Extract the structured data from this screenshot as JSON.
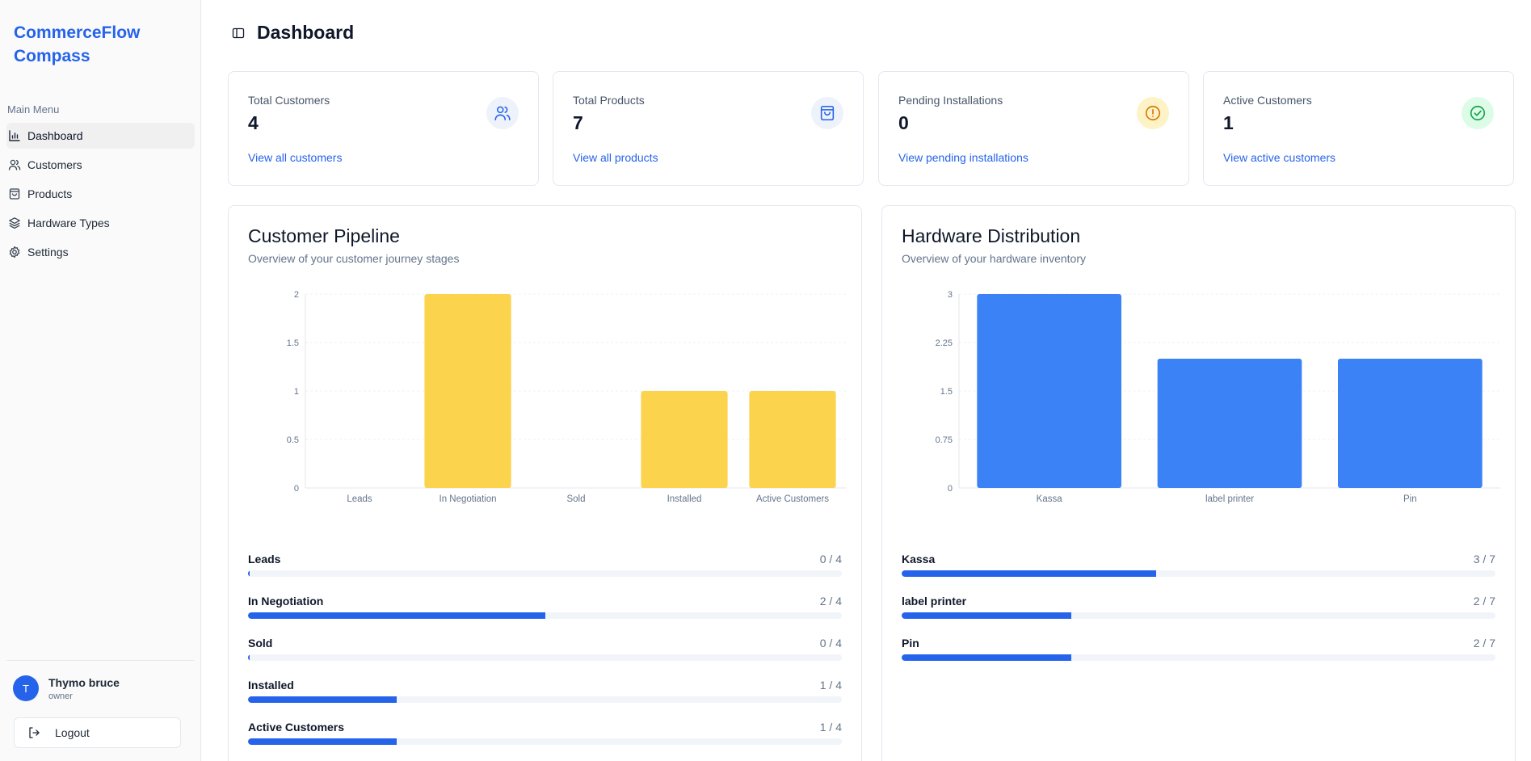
{
  "brand": {
    "title": "CommerceFlow Compass"
  },
  "sidebar": {
    "heading": "Main Menu",
    "items": [
      {
        "label": "Dashboard",
        "icon": "bar-chart-icon",
        "active": true
      },
      {
        "label": "Customers",
        "icon": "users-icon"
      },
      {
        "label": "Products",
        "icon": "shopping-bag-icon"
      },
      {
        "label": "Hardware Types",
        "icon": "layers-icon"
      },
      {
        "label": "Settings",
        "icon": "gear-icon"
      }
    ],
    "user": {
      "initial": "T",
      "name": "Thymo bruce",
      "role": "owner"
    },
    "logout_label": "Logout"
  },
  "header": {
    "title": "Dashboard"
  },
  "stats": [
    {
      "label": "Total Customers",
      "value": "4",
      "link": "View all customers",
      "icon": "users-icon",
      "accent": "#2563eb",
      "icon_bg": "#eef2fb"
    },
    {
      "label": "Total Products",
      "value": "7",
      "link": "View all products",
      "icon": "shopping-bag-icon",
      "accent": "#2563eb",
      "icon_bg": "#eef2fb"
    },
    {
      "label": "Pending Installations",
      "value": "0",
      "link": "View pending installations",
      "icon": "alert-circle-icon",
      "accent": "#d97706",
      "icon_bg": "#fef3c7"
    },
    {
      "label": "Active Customers",
      "value": "1",
      "link": "View active customers",
      "icon": "check-circle-icon",
      "accent": "#16a34a",
      "icon_bg": "#dcfce7"
    }
  ],
  "pipeline": {
    "title": "Customer Pipeline",
    "subtitle": "Overview of your customer journey stages",
    "rows": [
      {
        "label": "Leads",
        "count": "0 / 4",
        "fraction": 0.0
      },
      {
        "label": "In Negotiation",
        "count": "2 / 4",
        "fraction": 0.5
      },
      {
        "label": "Sold",
        "count": "0 / 4",
        "fraction": 0.0
      },
      {
        "label": "Installed",
        "count": "1 / 4",
        "fraction": 0.25
      },
      {
        "label": "Active Customers",
        "count": "1 / 4",
        "fraction": 0.25
      }
    ]
  },
  "hardware": {
    "title": "Hardware Distribution",
    "subtitle": "Overview of your hardware inventory",
    "rows": [
      {
        "label": "Kassa",
        "count": "3 / 7",
        "fraction": 0.4286
      },
      {
        "label": "label printer",
        "count": "2 / 7",
        "fraction": 0.2857
      },
      {
        "label": "Pin",
        "count": "2 / 7",
        "fraction": 0.2857
      }
    ]
  },
  "chart_data": [
    {
      "type": "bar",
      "categories": [
        "Leads",
        "In Negotiation",
        "Sold",
        "Installed",
        "Active Customers"
      ],
      "values": [
        0,
        2,
        0,
        1,
        1
      ],
      "ylim": [
        0,
        2
      ],
      "yticks": [
        "0",
        "0.5",
        "1",
        "1.5",
        "2"
      ],
      "grid": true,
      "color": "#fcd34d"
    },
    {
      "type": "bar",
      "categories": [
        "Kassa",
        "label printer",
        "Pin"
      ],
      "values": [
        3,
        2,
        2
      ],
      "ylim": [
        0,
        3
      ],
      "yticks": [
        "0",
        "0.75",
        "1.5",
        "2.25",
        "3"
      ],
      "grid": true,
      "color": "#3b82f6"
    }
  ]
}
